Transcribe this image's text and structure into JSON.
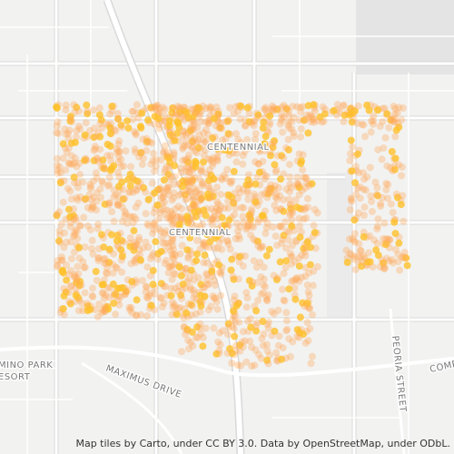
{
  "map": {
    "labels": [
      "CENTENNIAL",
      "CENTENNIAL",
      "MINO PARK",
      "ESORT",
      "MAXIMUS DRIVE",
      "PEORIA STREET",
      "COMRA"
    ],
    "attribution": "Map tiles by Carto, under CC BY 3.0. Data by OpenStreetMap, under ODbL."
  }
}
